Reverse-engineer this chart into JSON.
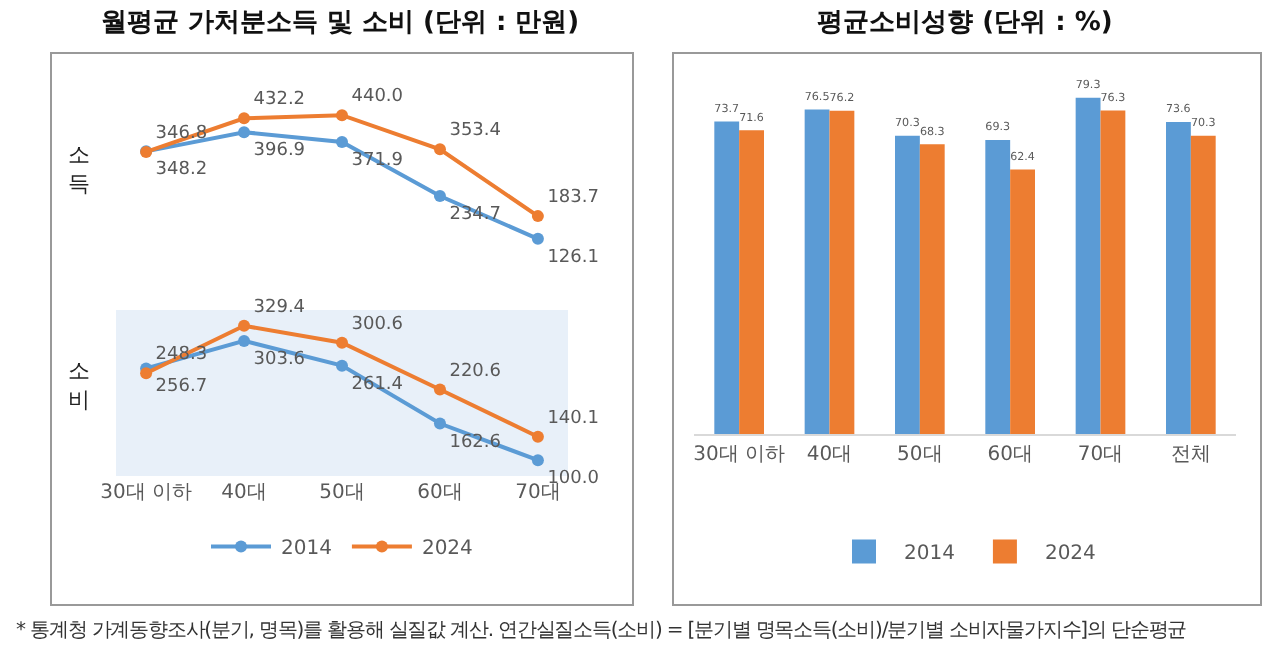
{
  "chart_data": [
    {
      "type": "line",
      "title": "월평균 가처분소득 및 소비 (단위 : 만원)",
      "ylabel": "소득",
      "categories": [
        null,
        null,
        null,
        null,
        null
      ],
      "series": [
        {
          "color": "#5b9bd5",
          "values": [
            348.2,
            396.9,
            371.9,
            234.7,
            126.1
          ],
          "value_labels": [
            "348.2",
            "396.9",
            "371.9",
            "234.7",
            "126.1"
          ]
        },
        {
          "color": "#ed7d31",
          "values": [
            346.8,
            432.2,
            440.0,
            353.4,
            183.7
          ],
          "value_labels": [
            "346.8",
            "432.2",
            "440.0",
            "353.4",
            "183.7"
          ]
        }
      ],
      "marker": "circle",
      "tick_labels": false,
      "legend": false,
      "grid": false
    },
    {
      "type": "line",
      "ylabel": "소비",
      "categories": [
        "30대 이하",
        "40대",
        "50대",
        "60대",
        "70대"
      ],
      "series": [
        {
          "name": "2014",
          "color": "#5b9bd5",
          "values": [
            256.7,
            303.6,
            261.4,
            162.6,
            100.0
          ],
          "value_labels": [
            "256.7",
            "303.6",
            "261.4",
            "162.6",
            "100.0"
          ]
        },
        {
          "name": "2024",
          "color": "#ed7d31",
          "values": [
            248.3,
            329.4,
            300.6,
            220.6,
            140.1
          ],
          "value_labels": [
            "248.3",
            "329.4",
            "300.6",
            "220.6",
            "140.1"
          ]
        }
      ],
      "marker": "circle",
      "tick_labels": "x",
      "legend": "bottom",
      "grid": false
    },
    {
      "type": "bar",
      "title": "평균소비성향 (단위 : %)",
      "categories": [
        "30대 이하",
        "40대",
        "50대",
        "60대",
        "70대",
        "전체"
      ],
      "series": [
        {
          "name": "2014",
          "color": "#5b9bd5",
          "values": [
            73.7,
            76.5,
            70.3,
            69.3,
            79.3,
            73.6
          ],
          "value_labels": [
            "73.7",
            "76.5",
            "70.3",
            "69.3",
            "79.3",
            "73.6"
          ]
        },
        {
          "name": "2024",
          "color": "#ed7d31",
          "values": [
            71.6,
            76.2,
            68.3,
            62.4,
            76.3,
            70.3
          ],
          "value_labels": [
            "71.6",
            "76.2",
            "68.3",
            "62.4",
            "76.3",
            "70.3"
          ]
        }
      ],
      "tick_labels": "x",
      "legend": "bottom",
      "grid": false,
      "annotations": [
        "* 통계청 가계동향조사(분기, 명목)를 활용해 실질값 계산. 연간실질소득(소비) = [분기별 명목소득(소비)/분기별 소비자물가지수]의 단순평균"
      ]
    }
  ]
}
